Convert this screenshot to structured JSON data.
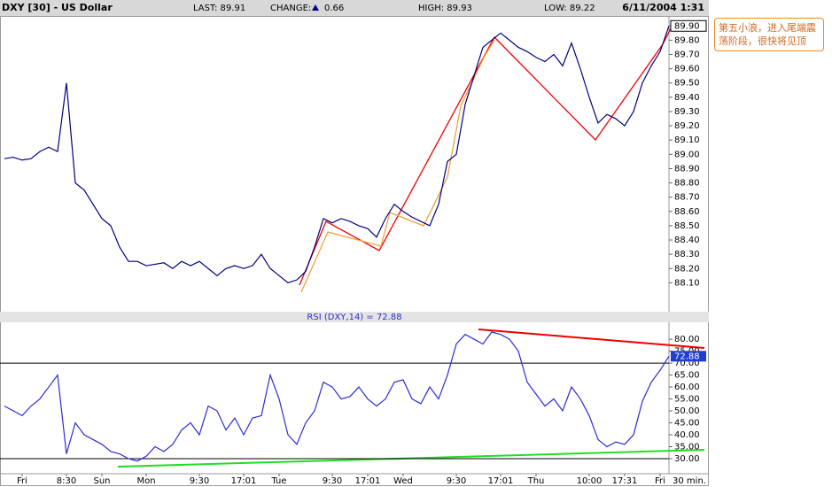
{
  "header": {
    "symbol": "DXY [30] - US Dollar",
    "last": "LAST: 89.91",
    "change_label": "CHANGE:",
    "change": "0.66",
    "high": "HIGH: 89.93",
    "low": "LOW: 89.22",
    "date": "6/11/2004 1:31"
  },
  "annotation": "第五小浪，进入尾端震荡阶段，很快将见顶",
  "interval": "30 min.",
  "chart_data": [
    {
      "type": "line",
      "color": "#000080",
      "values": [
        88.97,
        88.98,
        88.96,
        88.97,
        89.02,
        89.05,
        89.02,
        89.5,
        88.8,
        88.75,
        88.65,
        88.55,
        88.5,
        88.35,
        88.25,
        88.25,
        88.22,
        88.23,
        88.24,
        88.2,
        88.25,
        88.22,
        88.25,
        88.2,
        88.15,
        88.2,
        88.22,
        88.2,
        88.22,
        88.3,
        88.2,
        88.15,
        88.1,
        88.12,
        88.18,
        88.35,
        88.55,
        88.52,
        88.55,
        88.53,
        88.5,
        88.48,
        88.42,
        88.55,
        88.65,
        88.6,
        88.56,
        88.53,
        88.5,
        88.65,
        88.95,
        89.0,
        89.35,
        89.55,
        89.75,
        89.8,
        89.85,
        89.8,
        89.75,
        89.72,
        89.68,
        89.65,
        89.7,
        89.62,
        89.78,
        89.6,
        89.4,
        89.22,
        89.28,
        89.25,
        89.2,
        89.3,
        89.5,
        89.62,
        89.72,
        89.9
      ],
      "ylim": [
        87.91,
        89.97
      ],
      "yticks": [
        {
          "value": 88.1,
          "label": "88.10"
        },
        {
          "value": 88.2,
          "label": "88.20"
        },
        {
          "value": 88.3,
          "label": "88.30"
        },
        {
          "value": 88.4,
          "label": "88.40"
        },
        {
          "value": 88.5,
          "label": "88.50"
        },
        {
          "value": 88.6,
          "label": "88.60"
        },
        {
          "value": 88.7,
          "label": "88.70"
        },
        {
          "value": 88.8,
          "label": "88.80"
        },
        {
          "value": 88.9,
          "label": "88.90"
        },
        {
          "value": 89.0,
          "label": "89.00"
        },
        {
          "value": 89.1,
          "label": "89.10"
        },
        {
          "value": 89.2,
          "label": "89.20"
        },
        {
          "value": 89.3,
          "label": "89.30"
        },
        {
          "value": 89.4,
          "label": "89.40"
        },
        {
          "value": 89.5,
          "label": "89.50"
        },
        {
          "value": 89.6,
          "label": "89.60"
        },
        {
          "value": 89.7,
          "label": "89.70"
        },
        {
          "value": 89.8,
          "label": "89.80"
        },
        {
          "value": 89.9,
          "label": "89.90"
        }
      ],
      "highlight_tick": 18
    },
    {
      "type": "line",
      "title": "RSI (DXY,14) = 72.88",
      "color": "#2b2bd6",
      "categories": [
        null,
        null,
        "Fri",
        null,
        null,
        null,
        null,
        "8:30",
        null,
        null,
        null,
        "Sun",
        null,
        null,
        null,
        null,
        "Mon",
        null,
        null,
        null,
        null,
        null,
        "9:30",
        null,
        null,
        null,
        null,
        "17:01",
        null,
        null,
        null,
        "Tue",
        null,
        null,
        null,
        null,
        null,
        "9:30",
        null,
        null,
        null,
        "17:01",
        null,
        null,
        null,
        "Wed",
        null,
        null,
        null,
        null,
        null,
        "9:30",
        null,
        null,
        null,
        null,
        "17:01",
        null,
        null,
        null,
        "Thu",
        null,
        null,
        null,
        null,
        null,
        "10:00",
        null,
        null,
        null,
        "17:31",
        null,
        null,
        null,
        "Fri",
        null
      ],
      "values": [
        52,
        50,
        48,
        52,
        55,
        60,
        65,
        32,
        45,
        40,
        38,
        36,
        33,
        32,
        30,
        29,
        31,
        35,
        33,
        36,
        42,
        45,
        40,
        52,
        50,
        42,
        47,
        40,
        47,
        48,
        65,
        55,
        40,
        36,
        45,
        50,
        62,
        60,
        55,
        56,
        60,
        55,
        52,
        55,
        62,
        63,
        55,
        53,
        60,
        55,
        65,
        78,
        82,
        80,
        78,
        83,
        82,
        80,
        75,
        62,
        57,
        52,
        55,
        50,
        60,
        55,
        48,
        38,
        35,
        37,
        36,
        40,
        54,
        62,
        67,
        72.88
      ],
      "last_value": {
        "value": 72.88,
        "label": "72.88"
      },
      "ylim": [
        23.7,
        86.7
      ],
      "yticks": [
        {
          "value": 30,
          "label": "30.00"
        },
        {
          "value": 35,
          "label": "35.00"
        },
        {
          "value": 40,
          "label": "40.00"
        },
        {
          "value": 45,
          "label": "45.00"
        },
        {
          "value": 50,
          "label": "50.00"
        },
        {
          "value": 55,
          "label": "55.00"
        },
        {
          "value": 60,
          "label": "60.00"
        },
        {
          "value": 65,
          "label": "65.00"
        },
        {
          "value": 70,
          "label": "70.00"
        },
        {
          "value": 75,
          "label": "75.00"
        },
        {
          "value": 80,
          "label": "80.00"
        }
      ],
      "reference_ticks": [
        0,
        8
      ]
    }
  ]
}
